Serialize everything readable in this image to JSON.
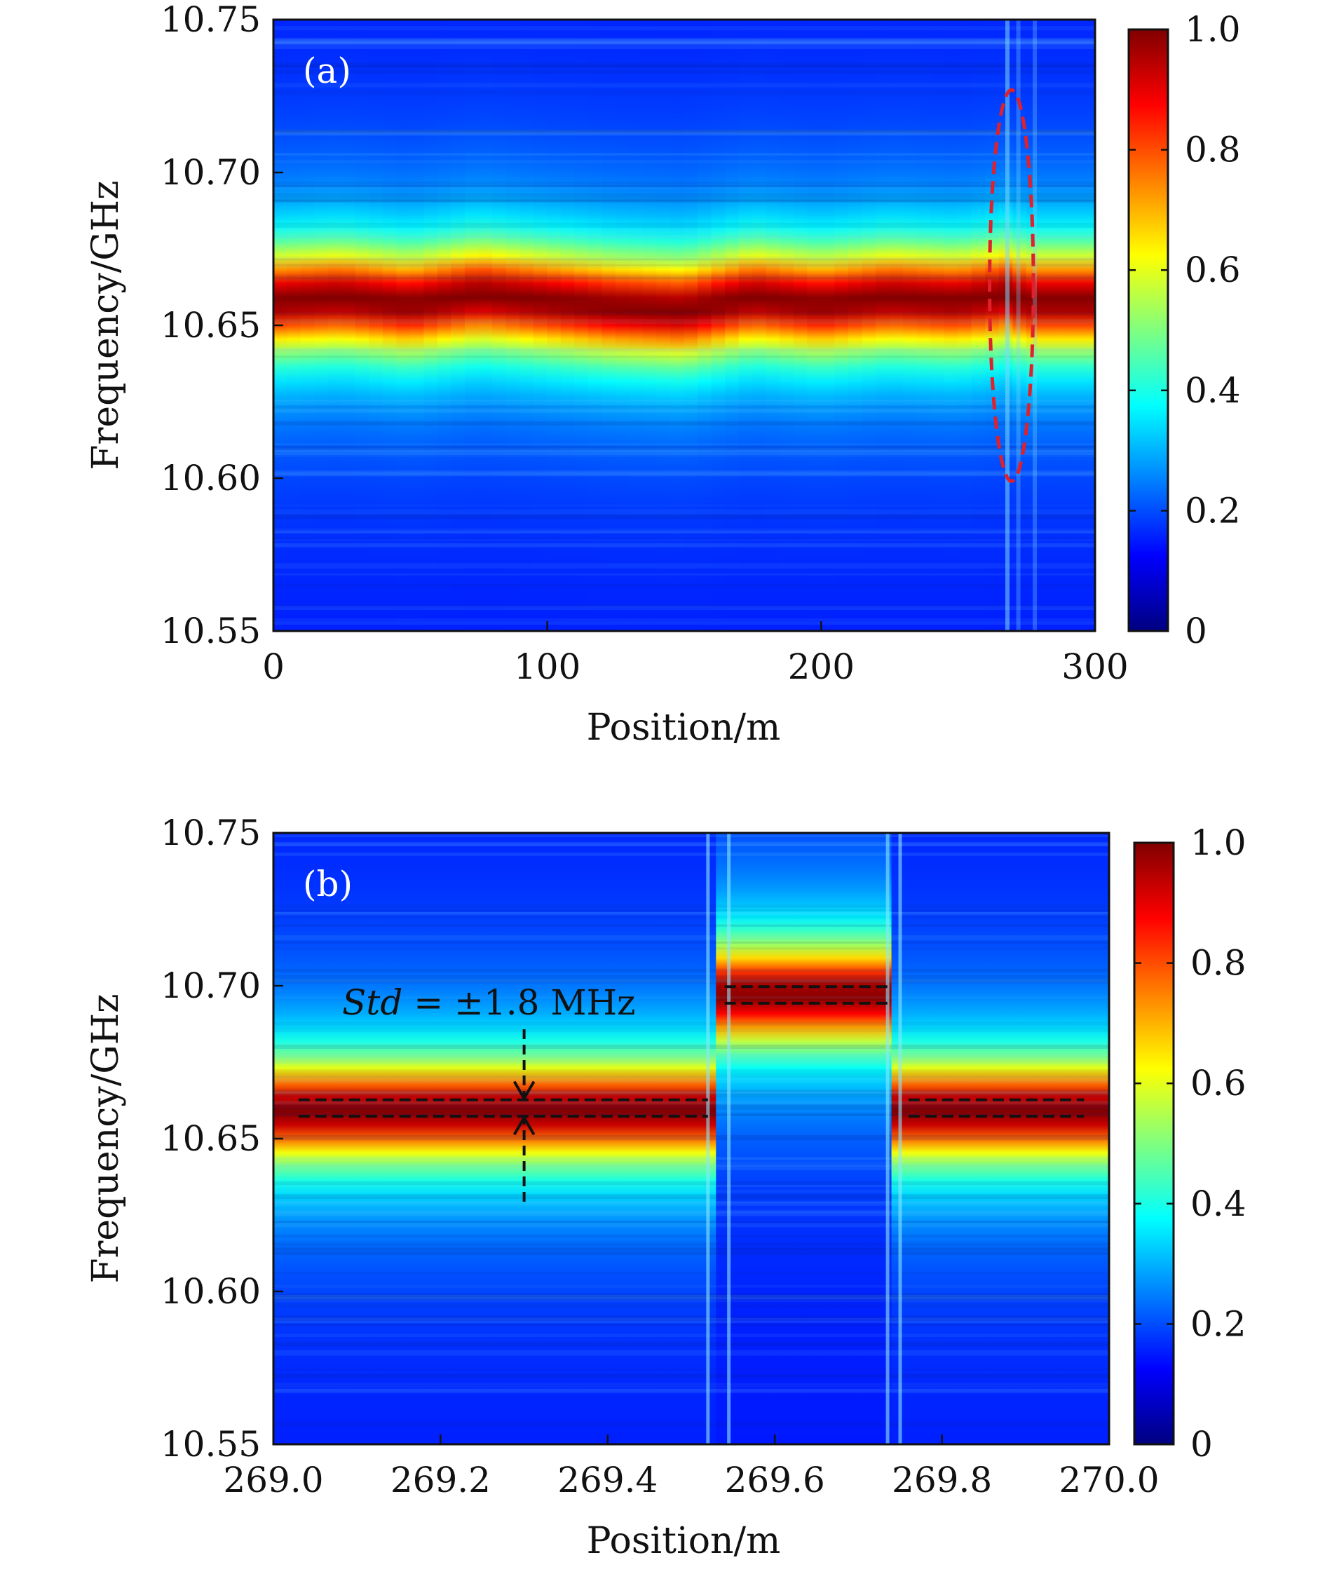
{
  "chart_data": [
    {
      "type": "heatmap",
      "panel_label": "(a)",
      "xlabel": "Position/m",
      "ylabel": "Frequency/GHz",
      "xlim": [
        0,
        300
      ],
      "ylim": [
        10.55,
        10.75
      ],
      "x_ticks": [
        "0",
        "100",
        "200",
        "300"
      ],
      "y_ticks": [
        "10.55",
        "10.60",
        "10.65",
        "10.70",
        "10.75"
      ],
      "colorbar": {
        "range": [
          0,
          1.0
        ],
        "ticks": [
          "0",
          "0.2",
          "0.4",
          "0.6",
          "0.8",
          "1.0"
        ],
        "colormap": "jet"
      },
      "peak_frequency": [
        {
          "x": 0,
          "y": 10.658
        },
        {
          "x": 25,
          "y": 10.659
        },
        {
          "x": 50,
          "y": 10.657
        },
        {
          "x": 75,
          "y": 10.66
        },
        {
          "x": 100,
          "y": 10.658
        },
        {
          "x": 125,
          "y": 10.656
        },
        {
          "x": 150,
          "y": 10.655
        },
        {
          "x": 175,
          "y": 10.659
        },
        {
          "x": 200,
          "y": 10.657
        },
        {
          "x": 225,
          "y": 10.659
        },
        {
          "x": 250,
          "y": 10.658
        },
        {
          "x": 268,
          "y": 10.66
        },
        {
          "x": 275,
          "y": 10.658
        },
        {
          "x": 300,
          "y": 10.658
        }
      ],
      "linewidth_ghz": 0.03,
      "annotations": [
        {
          "type": "dashed-ellipse",
          "color": "#e0202a",
          "center_x": 269.5,
          "center_y": 10.663,
          "rx": 8,
          "ry": 0.064
        }
      ]
    },
    {
      "type": "heatmap",
      "panel_label": "(b)",
      "xlabel": "Position/m",
      "ylabel": "Frequency/GHz",
      "xlim": [
        269.0,
        270.0
      ],
      "ylim": [
        10.55,
        10.75
      ],
      "x_ticks": [
        "269.0",
        "269.2",
        "269.4",
        "269.6",
        "269.8",
        "270.0"
      ],
      "y_ticks": [
        "10.55",
        "10.60",
        "10.65",
        "10.70",
        "10.75"
      ],
      "colorbar": {
        "range": [
          0,
          1.0
        ],
        "ticks": [
          "0",
          "0.2",
          "0.4",
          "0.6",
          "0.8",
          "1.0"
        ],
        "colormap": "jet"
      },
      "segments": [
        {
          "x_start": 269.0,
          "x_end": 269.53,
          "peak_frequency": 10.659
        },
        {
          "x_start": 269.53,
          "x_end": 269.74,
          "peak_frequency": 10.697
        },
        {
          "x_start": 269.74,
          "x_end": 270.0,
          "peak_frequency": 10.659
        }
      ],
      "linewidth_ghz": 0.03,
      "std_annotation": {
        "label_italic": "Std",
        "label_rest": " = ±1.8 MHz",
        "x": 269.3
      },
      "dashed_bands": [
        {
          "x_start": 269.03,
          "x_end": 269.52,
          "y_low": 10.6573,
          "y_high": 10.6627
        },
        {
          "x_start": 269.54,
          "x_end": 269.74,
          "y_low": 10.6943,
          "y_high": 10.6997
        },
        {
          "x_start": 269.76,
          "x_end": 269.97,
          "y_low": 10.6573,
          "y_high": 10.6627
        }
      ]
    }
  ]
}
